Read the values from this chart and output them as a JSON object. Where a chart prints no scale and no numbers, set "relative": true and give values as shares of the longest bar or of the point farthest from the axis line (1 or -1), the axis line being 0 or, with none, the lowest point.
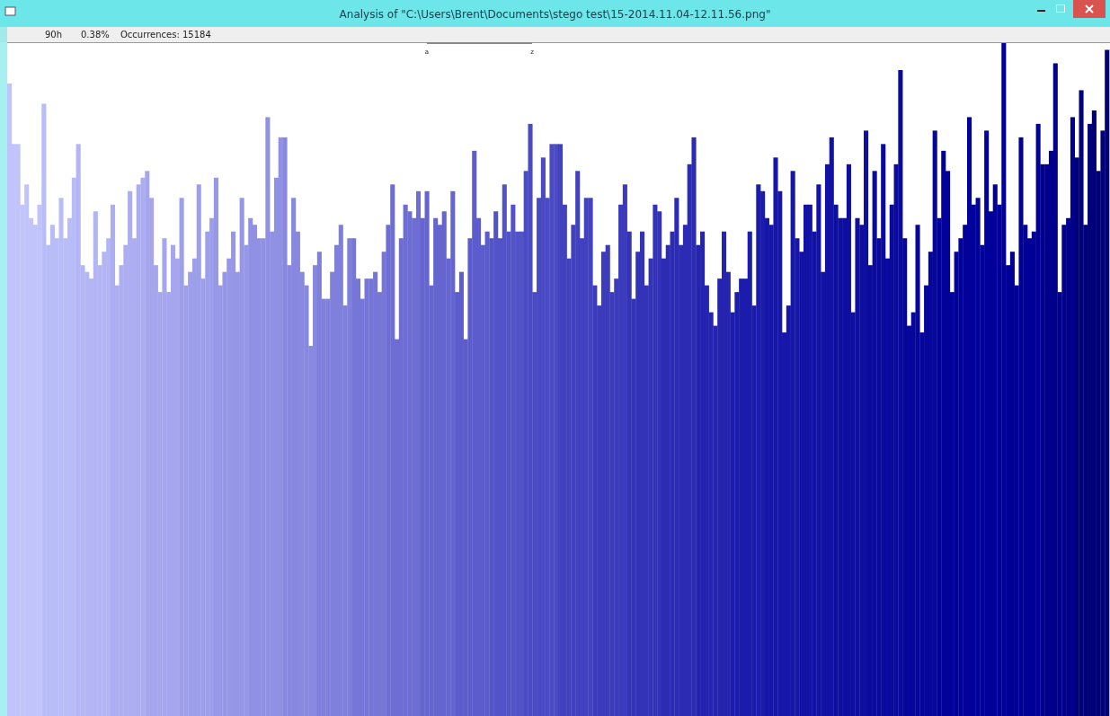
{
  "chart_data": {
    "type": "bar",
    "relative": true,
    "title": "Analysis of \"C:\\Users\\Brent\\Documents\\stego test\\15-2014.11.04-12.11.56.png\"",
    "annotations": [
      "90h",
      "0.38%",
      "Occurrences: 15184",
      "a",
      "z"
    ],
    "categories": [
      null,
      null,
      null,
      null,
      null,
      null,
      null,
      null,
      null,
      null,
      null,
      null,
      null,
      null,
      null,
      null,
      null,
      null,
      null,
      null,
      null,
      null,
      null,
      null,
      null,
      null,
      null,
      null,
      null,
      null,
      null,
      null,
      null,
      null,
      null,
      null,
      null,
      null,
      null,
      null,
      null,
      null,
      null,
      null,
      null,
      null,
      null,
      null,
      null,
      null,
      null,
      null,
      null,
      null,
      null,
      null,
      null,
      null,
      null,
      null,
      null,
      null,
      null,
      null,
      null,
      null,
      null,
      null,
      null,
      null,
      null,
      null,
      null,
      null,
      null,
      null,
      null,
      null,
      null,
      null,
      null,
      null,
      null,
      null,
      null,
      null,
      null,
      null,
      null,
      null,
      null,
      null,
      null,
      null,
      null,
      null,
      null,
      null,
      null,
      null,
      null,
      null,
      null,
      null,
      null,
      null,
      null,
      null,
      null,
      null,
      null,
      null,
      null,
      null,
      null,
      null,
      null,
      null,
      null,
      null,
      null,
      null,
      null,
      null,
      null,
      null,
      null,
      null,
      null,
      null,
      null,
      null,
      null,
      null,
      null,
      null,
      null,
      null,
      null,
      null,
      null,
      null,
      null,
      null,
      null,
      null,
      null,
      null,
      null,
      null,
      null,
      null,
      null,
      null,
      null,
      null,
      null,
      null,
      null,
      null,
      null,
      null,
      null,
      null,
      null,
      null,
      null,
      null,
      null,
      null,
      null,
      null,
      null,
      null,
      null,
      null,
      null,
      null,
      null,
      null,
      null,
      null,
      null,
      null,
      null,
      null,
      null,
      null,
      null,
      null,
      null,
      null,
      null,
      null,
      null,
      null,
      null,
      null,
      null,
      null,
      null,
      null,
      null,
      null,
      null,
      null,
      null,
      null,
      null,
      null,
      null,
      null,
      null,
      null,
      null,
      null,
      null,
      null,
      null,
      null,
      null,
      null,
      null,
      null,
      null,
      null,
      null,
      null,
      null,
      null,
      null,
      null,
      null,
      null,
      null,
      null,
      null,
      null,
      null,
      null,
      null,
      null,
      null,
      null,
      null,
      null,
      null,
      null,
      null,
      null,
      null,
      null,
      null,
      null,
      null,
      null
    ],
    "values": [
      0.94,
      0.85,
      0.85,
      0.76,
      0.79,
      0.74,
      0.73,
      0.76,
      0.91,
      0.7,
      0.73,
      0.71,
      0.77,
      0.71,
      0.74,
      0.8,
      0.85,
      0.67,
      0.66,
      0.65,
      0.75,
      0.67,
      0.69,
      0.71,
      0.76,
      0.64,
      0.67,
      0.7,
      0.78,
      0.71,
      0.79,
      0.8,
      0.81,
      0.77,
      0.67,
      0.63,
      0.71,
      0.63,
      0.7,
      0.68,
      0.77,
      0.64,
      0.66,
      0.68,
      0.79,
      0.65,
      0.72,
      0.74,
      0.8,
      0.64,
      0.66,
      0.68,
      0.72,
      0.66,
      0.77,
      0.7,
      0.74,
      0.73,
      0.71,
      0.71,
      0.89,
      0.72,
      0.8,
      0.86,
      0.86,
      0.67,
      0.77,
      0.72,
      0.66,
      0.64,
      0.55,
      0.67,
      0.69,
      0.62,
      0.62,
      0.66,
      0.7,
      0.73,
      0.61,
      0.71,
      0.71,
      0.65,
      0.62,
      0.65,
      0.65,
      0.66,
      0.63,
      0.69,
      0.73,
      0.79,
      0.56,
      0.71,
      0.76,
      0.75,
      0.74,
      0.78,
      0.74,
      0.78,
      0.64,
      0.74,
      0.73,
      0.75,
      0.68,
      0.78,
      0.63,
      0.66,
      0.56,
      0.71,
      0.84,
      0.74,
      0.7,
      0.72,
      0.71,
      0.75,
      0.71,
      0.79,
      0.72,
      0.76,
      0.72,
      0.72,
      0.81,
      0.88,
      0.63,
      0.77,
      0.83,
      0.77,
      0.85,
      0.85,
      0.85,
      0.76,
      0.68,
      0.73,
      0.81,
      0.71,
      0.77,
      0.77,
      0.64,
      0.61,
      0.69,
      0.7,
      0.63,
      0.65,
      0.76,
      0.79,
      0.72,
      0.62,
      0.69,
      0.72,
      0.64,
      0.68,
      0.76,
      0.75,
      0.68,
      0.7,
      0.72,
      0.77,
      0.7,
      0.73,
      0.82,
      0.86,
      0.7,
      0.72,
      0.64,
      0.6,
      0.58,
      0.65,
      0.72,
      0.66,
      0.6,
      0.63,
      0.65,
      0.65,
      0.72,
      0.61,
      0.79,
      0.78,
      0.74,
      0.73,
      0.83,
      0.78,
      0.57,
      0.61,
      0.81,
      0.71,
      0.69,
      0.76,
      0.76,
      0.72,
      0.79,
      0.66,
      0.82,
      0.86,
      0.76,
      0.74,
      0.74,
      0.82,
      0.6,
      0.74,
      0.73,
      0.87,
      0.67,
      0.81,
      0.71,
      0.85,
      0.68,
      0.76,
      0.82,
      0.96,
      0.71,
      0.58,
      0.6,
      0.73,
      0.57,
      0.64,
      0.69,
      0.87,
      0.74,
      0.84,
      0.81,
      0.63,
      0.69,
      0.71,
      0.73,
      0.89,
      0.76,
      0.77,
      0.7,
      0.87,
      0.75,
      0.79,
      0.76,
      1,
      0.67,
      0.69,
      0.64,
      0.86,
      0.73,
      0.71,
      0.72,
      0.88,
      0.82,
      0.82,
      0.84,
      0.97,
      0.63,
      0.73,
      0.74,
      0.89,
      0.83,
      0.93,
      0.73,
      0.88,
      0.9,
      0.81,
      0.87,
      0.99
    ],
    "colors": [
      "#c0c4fa",
      "#c0c4fa",
      "#c0c4fa",
      "#c0c4fa",
      "#c0c4fa",
      "#c0c4fa",
      "#c0c4fa",
      "#c0c4fa",
      "#b9bdf7",
      "#b9bdf7",
      "#b9bdf7",
      "#b9bdf7",
      "#b9bdf7",
      "#b9bdf7",
      "#b9bdf7",
      "#b9bdf7",
      "#b3b5f4",
      "#b3b5f4",
      "#b3b5f4",
      "#b3b5f4",
      "#b3b5f4",
      "#b3b5f4",
      "#b3b5f4",
      "#b3b5f4",
      "#acaef1",
      "#acaef1",
      "#acaef1",
      "#acaef1",
      "#acaef1",
      "#acaef1",
      "#acaef1",
      "#acaef1",
      "#a5a6ed",
      "#a5a6ed",
      "#a5a6ed",
      "#a5a6ed",
      "#a5a6ed",
      "#a5a6ed",
      "#a5a6ed",
      "#a5a6ed",
      "#9e9fea",
      "#9e9fea",
      "#9e9fea",
      "#9e9fea",
      "#9e9fea",
      "#9e9fea",
      "#9e9fea",
      "#9e9fea",
      "#9797e7",
      "#9797e7",
      "#9797e7",
      "#9797e7",
      "#9797e7",
      "#9797e7",
      "#9797e7",
      "#9797e7",
      "#9090e4",
      "#9090e4",
      "#9090e4",
      "#9090e4",
      "#9090e4",
      "#9090e4",
      "#9090e4",
      "#9090e4",
      "#8888e0",
      "#8888e0",
      "#8888e0",
      "#8888e0",
      "#8888e0",
      "#8888e0",
      "#8888e0",
      "#8888e0",
      "#7f7fdc",
      "#7f7fdc",
      "#7f7fdc",
      "#7f7fdc",
      "#7f7fdc",
      "#7f7fdc",
      "#7f7fdc",
      "#7f7fdc",
      "#7676d8",
      "#7676d8",
      "#7676d8",
      "#7676d8",
      "#7676d8",
      "#7676d8",
      "#7676d8",
      "#7676d8",
      "#6d6dd4",
      "#6d6dd4",
      "#6d6dd4",
      "#6d6dd4",
      "#6d6dd4",
      "#6d6dd4",
      "#6d6dd4",
      "#6d6dd4",
      "#6565d0",
      "#6565d0",
      "#6565d0",
      "#6565d0",
      "#6565d0",
      "#6565d0",
      "#6565d0",
      "#6565d0",
      "#5c5ccc",
      "#5c5ccc",
      "#5c5ccc",
      "#5c5ccc",
      "#5c5ccc",
      "#5c5ccc",
      "#5c5ccc",
      "#5c5ccc",
      "#5353c8",
      "#5353c8",
      "#5353c8",
      "#5353c8",
      "#5353c8",
      "#5353c8",
      "#5353c8",
      "#5353c8",
      "#4a4ac4",
      "#4a4ac4",
      "#4a4ac4",
      "#4a4ac4",
      "#4a4ac4",
      "#4a4ac4",
      "#4a4ac4",
      "#4a4ac4",
      "#4242c0",
      "#4242c0",
      "#4242c0",
      "#4242c0",
      "#4242c0",
      "#4242c0",
      "#4242c0",
      "#4242c0",
      "#3b3bbc",
      "#3b3bbc",
      "#3b3bbc",
      "#3b3bbc",
      "#3b3bbc",
      "#3b3bbc",
      "#3b3bbc",
      "#3b3bbc",
      "#3333b8",
      "#3333b8",
      "#3333b8",
      "#3333b8",
      "#3333b8",
      "#3333b8",
      "#3333b8",
      "#3333b8",
      "#2b2bb4",
      "#2b2bb4",
      "#2b2bb4",
      "#2b2bb4",
      "#2b2bb4",
      "#2b2bb4",
      "#2b2bb4",
      "#2b2bb4",
      "#2424b0",
      "#2424b0",
      "#2424b0",
      "#2424b0",
      "#2424b0",
      "#2424b0",
      "#2424b0",
      "#2424b0",
      "#1c1cac",
      "#1c1cac",
      "#1c1cac",
      "#1c1cac",
      "#1c1cac",
      "#1c1cac",
      "#1c1cac",
      "#1c1cac",
      "#1616a8",
      "#1616a8",
      "#1616a8",
      "#1616a8",
      "#1616a8",
      "#1616a8",
      "#1616a8",
      "#1616a8",
      "#1212a4",
      "#1212a4",
      "#1212a4",
      "#1212a4",
      "#1212a4",
      "#1212a4",
      "#1212a4",
      "#1212a4",
      "#0e0ea0",
      "#0e0ea0",
      "#0e0ea0",
      "#0e0ea0",
      "#0e0ea0",
      "#0e0ea0",
      "#0e0ea0",
      "#0e0ea0",
      "#0a0a9d",
      "#0a0a9d",
      "#0a0a9d",
      "#0a0a9d",
      "#0a0a9d",
      "#0a0a9d",
      "#0a0a9d",
      "#0a0a9d",
      "#06069b",
      "#06069b",
      "#06069b",
      "#06069b",
      "#06069b",
      "#06069b",
      "#06069b",
      "#06069b",
      "#02029b",
      "#02029b",
      "#02029b",
      "#02029b",
      "#02029b",
      "#02029b",
      "#02029b",
      "#02029b",
      "#00009a",
      "#00009a",
      "#00009a",
      "#00009a",
      "#00009a",
      "#00009a",
      "#00009a",
      "#00009a",
      "#000097",
      "#000097",
      "#000097",
      "#000097",
      "#000097",
      "#000097",
      "#000097",
      "#000097",
      "#00008c",
      "#00008c",
      "#00008c",
      "#00008c",
      "#00008c",
      "#00008c",
      "#00008c",
      "#00008c",
      "#000078",
      "#000078",
      "#000078",
      "#000078",
      "#000078",
      "#000078",
      "#000078",
      "#000078"
    ]
  }
}
